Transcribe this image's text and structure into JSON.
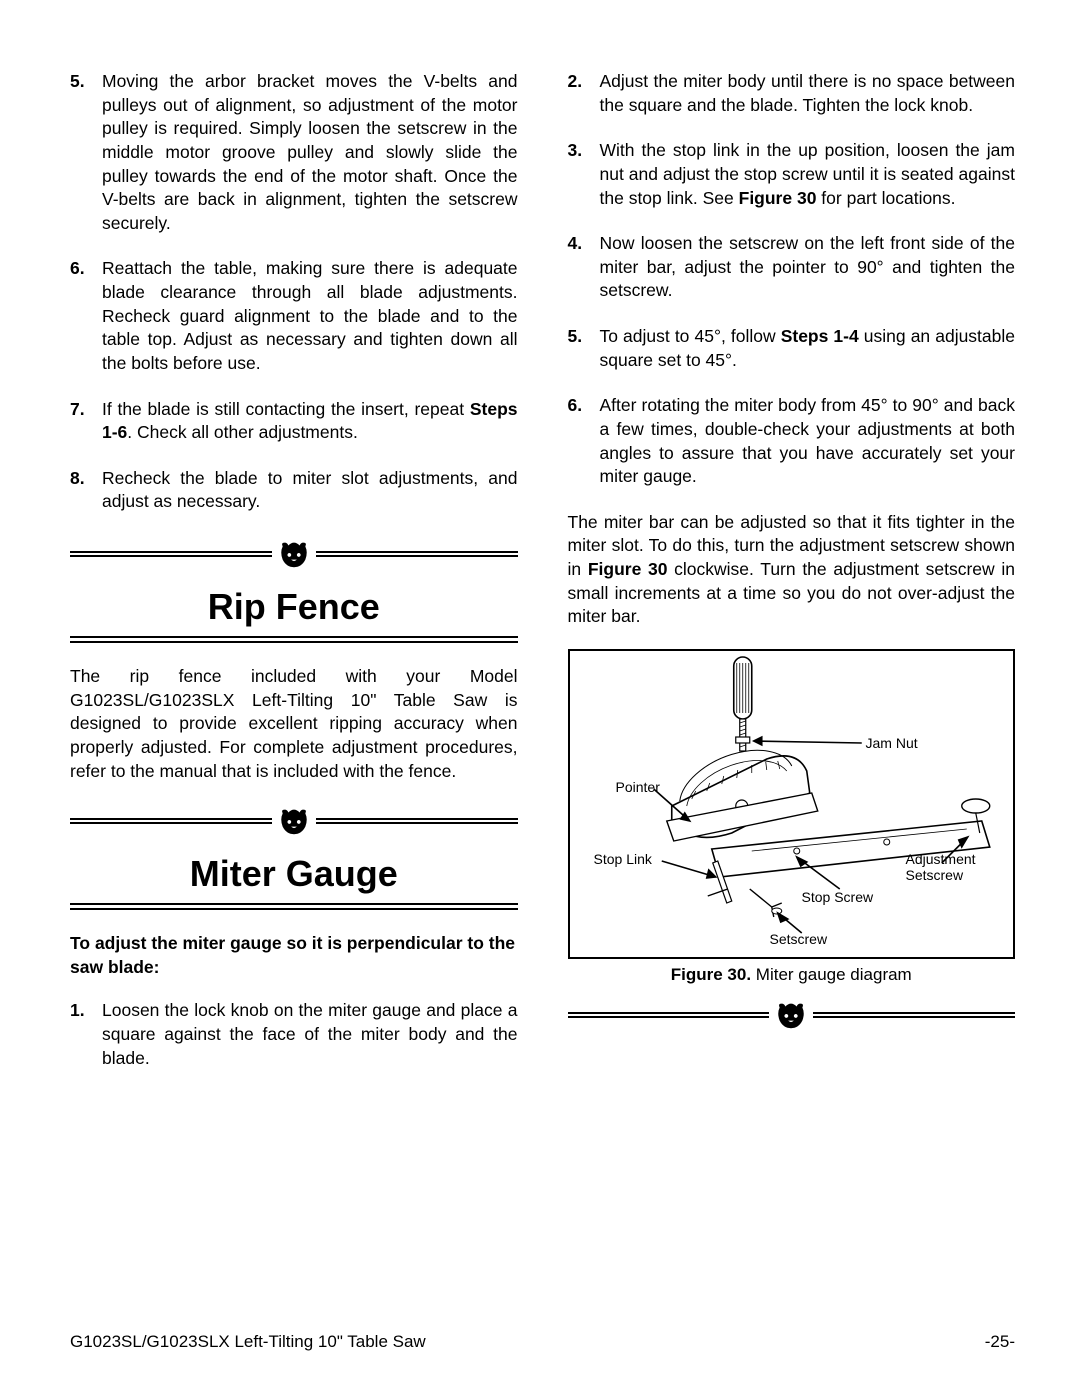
{
  "left_col": {
    "items": [
      {
        "num": "5.",
        "html": "Moving the arbor bracket moves the V-belts and pulleys out of alignment, so adjustment of the motor pulley is required. Simply loosen the setscrew in the middle motor groove pulley and slowly slide the pulley towards the end of the motor shaft. Once the V-belts are back in alignment, tighten the setscrew securely."
      },
      {
        "num": "6.",
        "html": "Reattach the table, making sure there is adequate blade clearance through all blade adjustments. Recheck guard alignment to the blade and to the table top. Adjust as necessary and tighten down all the bolts before use."
      },
      {
        "num": "7.",
        "html": "If the blade is still contacting the insert, repeat <b>Steps 1-6</b>. Check all other adjustments."
      },
      {
        "num": "8.",
        "html": "Recheck the blade to miter slot adjustments, and adjust as necessary."
      }
    ],
    "sec1_title": "Rip Fence",
    "sec1_para": "The rip fence included with your Model G1023SL/G1023SLX Left-Tilting 10\" Table Saw is designed to provide excellent ripping accuracy when properly adjusted. For complete adjustment procedures, refer to the manual that is included with the fence.",
    "sec2_title": "Miter Gauge",
    "sec2_bold": "To adjust the miter gauge so it is perpendicular to the saw blade:",
    "sec2_items": [
      {
        "num": "1.",
        "html": "Loosen the lock knob on the miter gauge and place a square against the face of the miter body and the blade."
      }
    ]
  },
  "right_col": {
    "items": [
      {
        "num": "2.",
        "html": "Adjust the miter body until there is no space between the square and the blade. Tighten the lock knob."
      },
      {
        "num": "3.",
        "html": "With the stop link in the up position, loosen the jam nut and adjust the stop screw until it is seated against the stop link. See <b>Figure 30</b> for part locations."
      },
      {
        "num": "4.",
        "html": "Now loosen the setscrew on the left front side of the miter bar, adjust the pointer to 90° and tighten the setscrew."
      },
      {
        "num": "5.",
        "html": "To adjust to 45°, follow <b>Steps 1-4</b> using an adjustable square set to 45°."
      },
      {
        "num": "6.",
        "html": "After rotating the miter body from 45° to 90° and back a few times, double-check your adjustments at both angles to assure that you have accurately set your miter gauge."
      }
    ],
    "para": "The miter bar can be adjusted so that it fits tighter in the miter slot. To do this, turn the adjustment setscrew shown in <b>Figure 30</b> clockwise. Turn the adjustment setscrew in small increments at a time so you do not over-adjust the miter bar.",
    "fig_caption": "<b>Figure 30.</b> Miter gauge diagram",
    "fig_labels": {
      "pointer": "Pointer",
      "jam_nut": "Jam Nut",
      "stop_link": "Stop Link",
      "stop_screw": "Stop Screw",
      "setscrew": "Setscrew",
      "adjustment": "Adjustment",
      "adjustment2": "Setscrew"
    }
  },
  "footer": {
    "left": "G1023SL/G1023SLX Left-Tilting 10\" Table Saw",
    "right": "-25-"
  }
}
